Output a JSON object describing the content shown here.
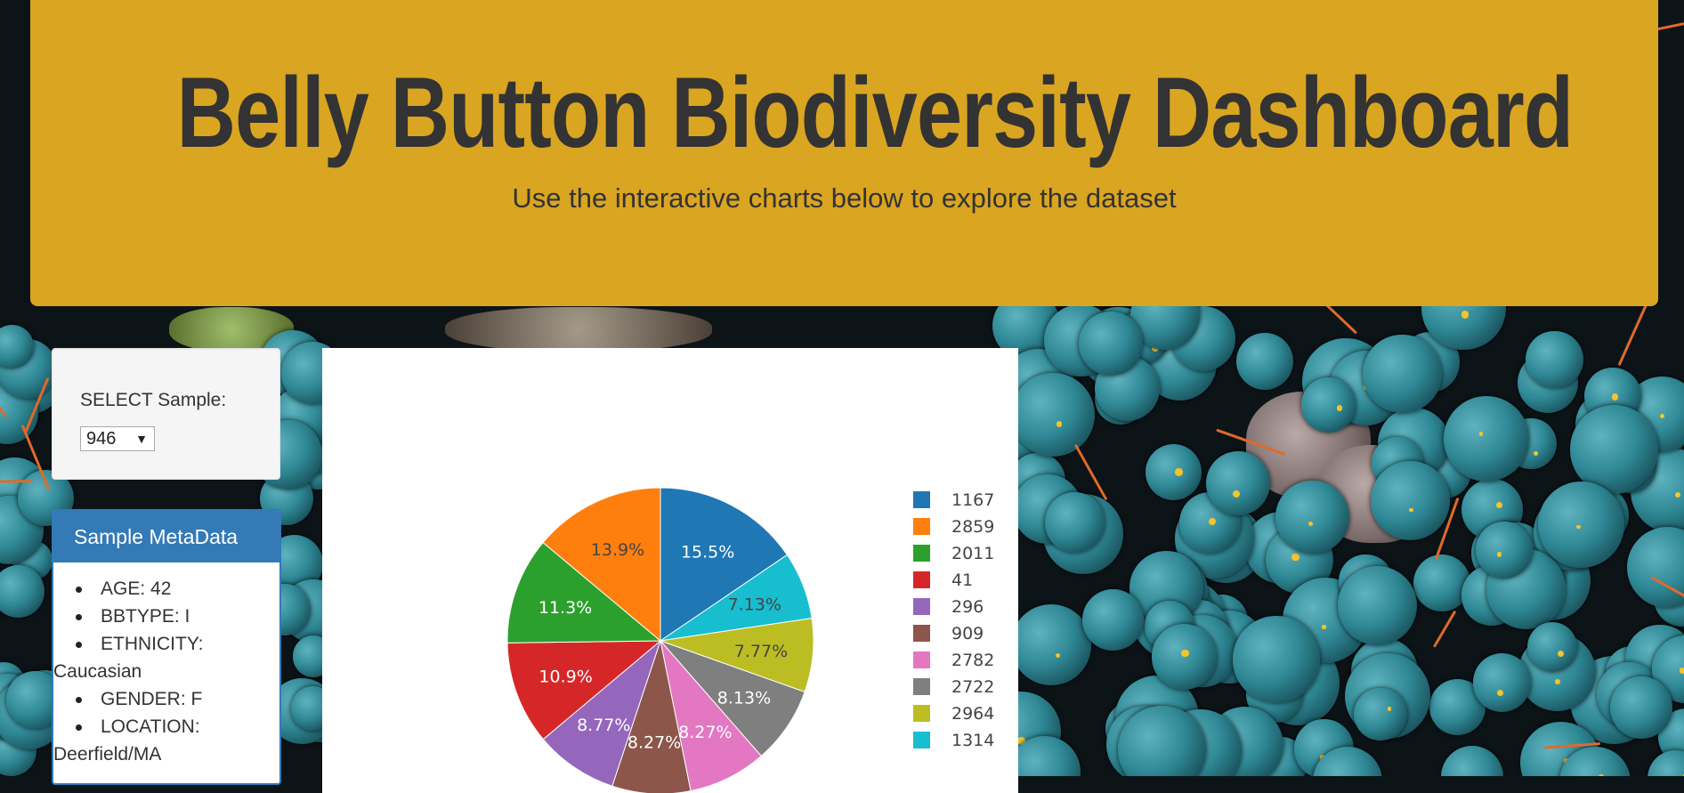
{
  "header": {
    "title": "Belly Button Biodiversity Dashboard",
    "subtitle": "Use the interactive charts below to explore the dataset"
  },
  "selector": {
    "label": "SELECT Sample:",
    "selected": "946"
  },
  "metadata_panel": {
    "title": "Sample MetaData",
    "items": [
      {
        "text": "AGE: 42"
      },
      {
        "text": "BBTYPE: I"
      },
      {
        "text": "ETHNICITY:",
        "wrap": "Caucasian"
      },
      {
        "text": "GENDER: F"
      },
      {
        "text": "LOCATION:",
        "wrap": "Deerfield/MA"
      }
    ]
  },
  "chart_data": {
    "type": "pie",
    "labels": [
      "1167",
      "2859",
      "2011",
      "41",
      "296",
      "909",
      "2782",
      "2722",
      "2964",
      "1314"
    ],
    "values": [
      15.5,
      13.9,
      11.3,
      10.9,
      8.77,
      8.27,
      8.27,
      8.13,
      7.77,
      7.13
    ],
    "value_labels": [
      "15.5%",
      "13.9%",
      "11.3%",
      "10.9%",
      "8.77%",
      "8.27%",
      "8.27%",
      "8.13%",
      "7.77%",
      "7.13%"
    ],
    "colors": [
      "#1f77b4",
      "#ff7f0e",
      "#2ca02c",
      "#d62728",
      "#9467bd",
      "#8c564b",
      "#e377c2",
      "#7f7f7f",
      "#bcbd22",
      "#17becf"
    ],
    "legend_placement": "right"
  }
}
